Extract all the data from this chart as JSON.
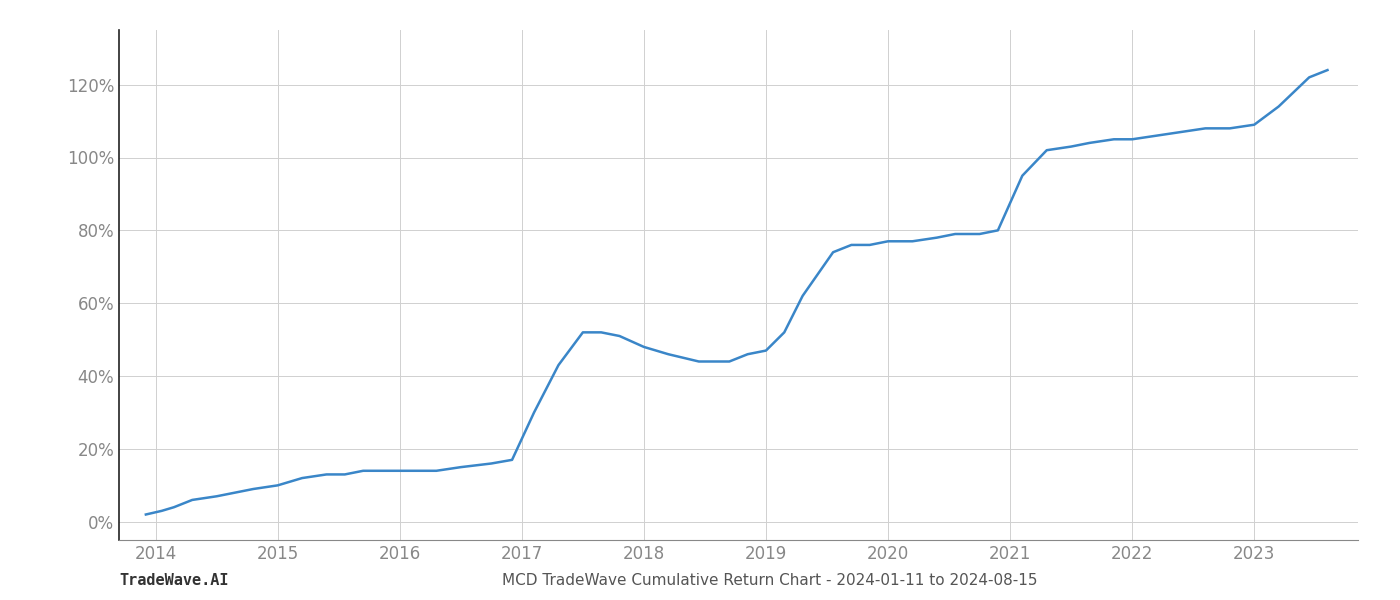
{
  "title": "MCD TradeWave Cumulative Return Chart - 2024-01-11 to 2024-08-15",
  "watermark": "TradeWave.AI",
  "line_color": "#3a86c8",
  "background_color": "#ffffff",
  "grid_color": "#d0d0d0",
  "x_years": [
    2014,
    2015,
    2016,
    2017,
    2018,
    2019,
    2020,
    2021,
    2022,
    2023
  ],
  "x_values": [
    2013.92,
    2014.05,
    2014.15,
    2014.3,
    2014.5,
    2014.65,
    2014.8,
    2015.0,
    2015.2,
    2015.4,
    2015.55,
    2015.7,
    2015.85,
    2016.0,
    2016.15,
    2016.3,
    2016.5,
    2016.75,
    2016.92,
    2017.1,
    2017.3,
    2017.5,
    2017.65,
    2017.8,
    2018.0,
    2018.2,
    2018.45,
    2018.7,
    2018.85,
    2019.0,
    2019.15,
    2019.3,
    2019.55,
    2019.7,
    2019.85,
    2020.0,
    2020.2,
    2020.4,
    2020.55,
    2020.75,
    2020.9,
    2021.1,
    2021.3,
    2021.5,
    2021.65,
    2021.85,
    2022.0,
    2022.2,
    2022.4,
    2022.6,
    2022.8,
    2023.0,
    2023.2,
    2023.45,
    2023.6
  ],
  "y_values": [
    2,
    3,
    4,
    6,
    7,
    8,
    9,
    10,
    12,
    13,
    13,
    14,
    14,
    14,
    14,
    14,
    15,
    16,
    17,
    30,
    43,
    52,
    52,
    51,
    48,
    46,
    44,
    44,
    46,
    47,
    52,
    62,
    74,
    76,
    76,
    77,
    77,
    78,
    79,
    79,
    80,
    95,
    102,
    103,
    104,
    105,
    105,
    106,
    107,
    108,
    108,
    109,
    114,
    122,
    124
  ],
  "ylim": [
    -5,
    135
  ],
  "xlim": [
    2013.7,
    2023.85
  ],
  "yticks": [
    0,
    20,
    40,
    60,
    80,
    100,
    120
  ],
  "line_width": 1.8,
  "title_fontsize": 11,
  "watermark_fontsize": 11,
  "tick_fontsize": 12,
  "tick_color": "#888888",
  "title_color": "#555555",
  "watermark_color": "#333333",
  "left_spine_color": "#222222",
  "bottom_spine_color": "#888888"
}
